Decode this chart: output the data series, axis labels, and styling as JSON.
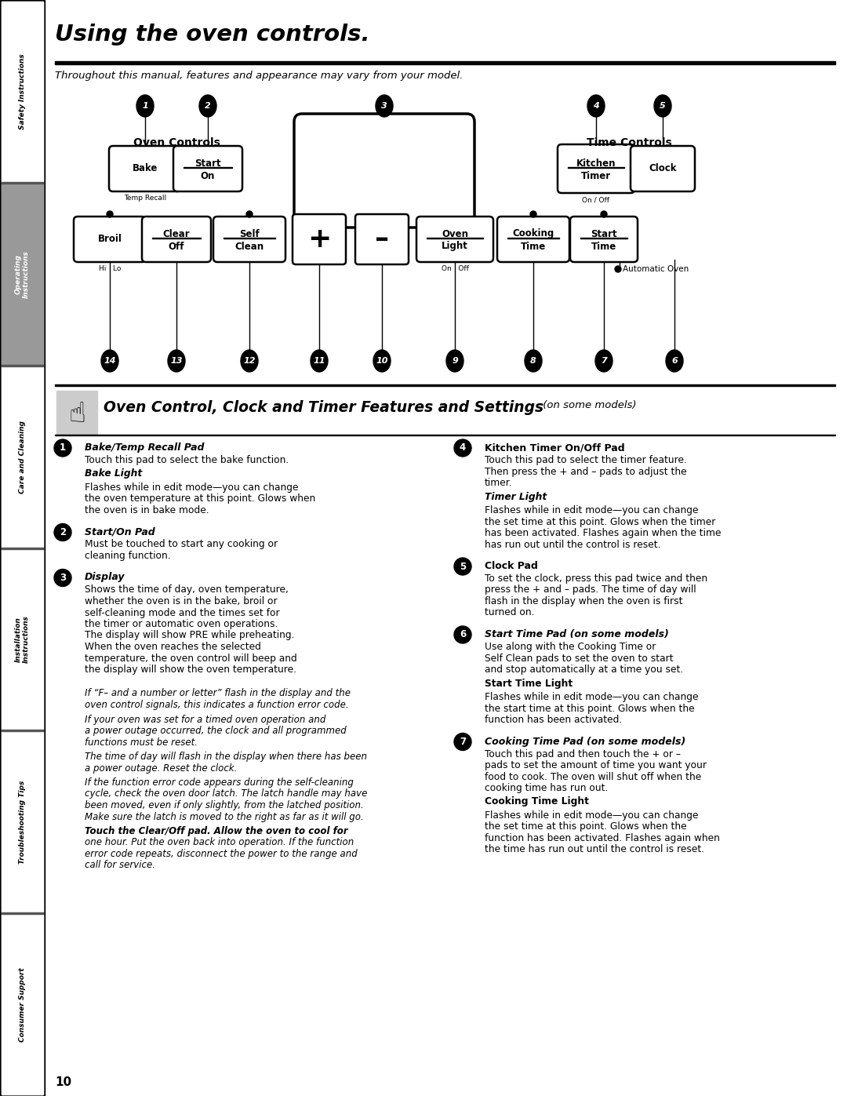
{
  "page_bg": "#ffffff",
  "title": "Using the oven controls.",
  "subtitle": "Throughout this manual, features and appearance may vary from your model.",
  "section_title": "Oven Control, Clock and Timer Features and Settings",
  "section_title_suffix": " (on some models)",
  "page_number": "10",
  "sidebar_sections": [
    {
      "text": "Safety Instructions",
      "bg": "#ffffff",
      "text_color": "#000000"
    },
    {
      "text": "Operating\nInstructions",
      "bg": "#999999",
      "text_color": "#ffffff"
    },
    {
      "text": "Care and Cleaning",
      "bg": "#ffffff",
      "text_color": "#000000"
    },
    {
      "text": "Installation\nInstructions",
      "bg": "#ffffff",
      "text_color": "#000000"
    },
    {
      "text": "Troubleshooting Tips",
      "bg": "#ffffff",
      "text_color": "#000000"
    },
    {
      "text": "Consumer Support",
      "bg": "#ffffff",
      "text_color": "#000000"
    }
  ]
}
